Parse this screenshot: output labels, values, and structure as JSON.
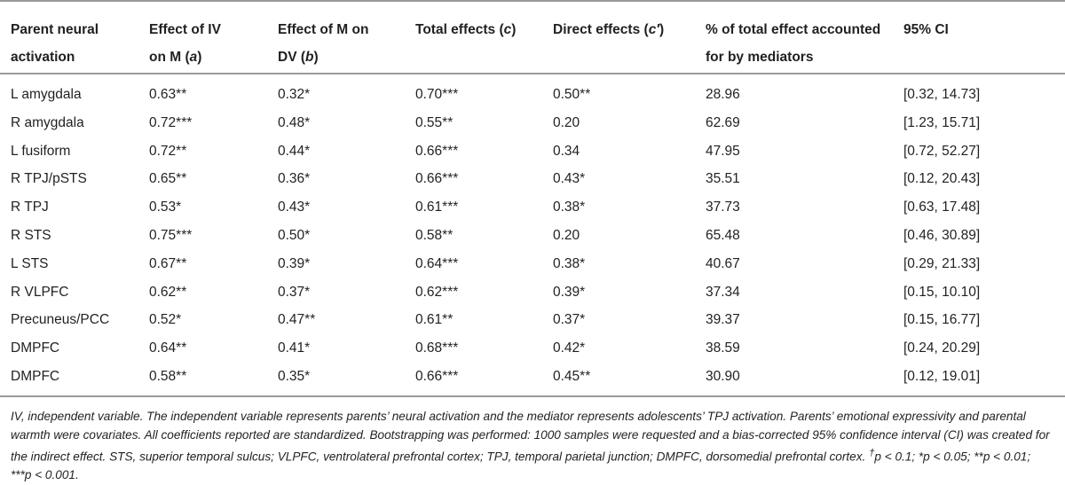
{
  "table": {
    "headers": [
      [
        "Parent neural",
        "activation"
      ],
      [
        "Effect of IV",
        "on M (",
        "a",
        ")"
      ],
      [
        "Effect of M on",
        "DV (",
        "b",
        ")"
      ],
      [
        "Total effects (",
        "c",
        ")"
      ],
      [
        "Direct effects (",
        "c′",
        ")"
      ],
      [
        "% of total effect accounted",
        "for by mediators"
      ],
      [
        "95% CI"
      ]
    ],
    "rows": [
      [
        "L amygdala",
        "0.63**",
        "0.32*",
        "0.70***",
        "0.50**",
        "28.96",
        "[0.32, 14.73]"
      ],
      [
        "R amygdala",
        "0.72***",
        "0.48*",
        "0.55**",
        "0.20",
        "62.69",
        "[1.23, 15.71]"
      ],
      [
        "L fusiform",
        "0.72**",
        "0.44*",
        "0.66***",
        "0.34",
        "47.95",
        "[0.72, 52.27]"
      ],
      [
        "R TPJ/pSTS",
        "0.65**",
        "0.36*",
        "0.66***",
        "0.43*",
        "35.51",
        "[0.12, 20.43]"
      ],
      [
        "R TPJ",
        "0.53*",
        "0.43*",
        "0.61***",
        "0.38*",
        "37.73",
        "[0.63, 17.48]"
      ],
      [
        "R STS",
        "0.75***",
        "0.50*",
        "0.58**",
        "0.20",
        "65.48",
        "[0.46, 30.89]"
      ],
      [
        "L STS",
        "0.67**",
        "0.39*",
        "0.64***",
        "0.38*",
        "40.67",
        "[0.29, 21.33]"
      ],
      [
        "R VLPFC",
        "0.62**",
        "0.37*",
        "0.62***",
        "0.39*",
        "37.34",
        "[0.15, 10.10]"
      ],
      [
        "Precuneus/PCC",
        "0.52*",
        "0.47**",
        "0.61**",
        "0.37*",
        "39.37",
        "[0.15, 16.77]"
      ],
      [
        "DMPFC",
        "0.64**",
        "0.41*",
        "0.68***",
        "0.42*",
        "38.59",
        "[0.24, 20.29]"
      ],
      [
        "DMPFC",
        "0.58**",
        "0.35*",
        "0.66***",
        "0.45**",
        "30.90",
        "[0.12, 19.01]"
      ]
    ]
  },
  "footnote": {
    "text": "IV, independent variable. The independent variable represents parents’ neural activation and the mediator represents adolescents’ TPJ activation. Parents’ emotional expressivity and parental warmth were covariates. All coefficients reported are standardized. Bootstrapping was performed: 1000 samples were requested and a bias-corrected 95% confidence interval (CI) was created for the indirect effect. STS, superior temporal sulcus; VLPFC, ventrolateral prefrontal cortex; TPJ, temporal parietal junction; DMPFC, dorsomedial prefrontal cortex.",
    "dagger": "†",
    "significance": "p < 0.1; *p < 0.05; **p < 0.01; ***p < 0.001."
  }
}
